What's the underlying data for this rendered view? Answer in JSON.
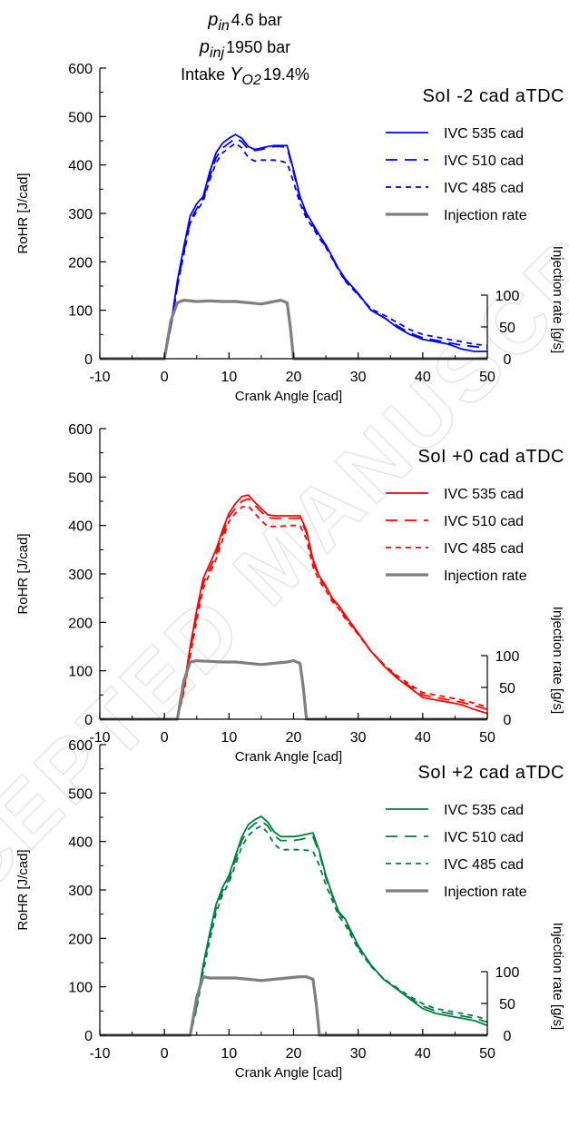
{
  "header": {
    "pin_label": "p",
    "pin_sub": "in",
    "pin_value": "4.6 bar",
    "pinj_label": "p",
    "pinj_sub": "inj",
    "pinj_value": "1950 bar",
    "yo2_prefix": "Intake ",
    "yo2_label": "Y",
    "yo2_sub": "O2",
    "yo2_value": "19.4%"
  },
  "watermark": "ACCEPTED MANUSCRIPT",
  "colors": {
    "injection": "#7f7f7f",
    "axis": "#000000"
  },
  "chart_data": [
    {
      "type": "line",
      "title": "SoI -2 cad aTDC",
      "color": "#0000ff",
      "xlabel": "Crank Angle [cad]",
      "ylabel": "RoHR [J/cad]",
      "y2label": "Injection rate [g/s]",
      "xlim": [
        -10,
        50
      ],
      "ylim": [
        0,
        600
      ],
      "y2lim": [
        0,
        100
      ],
      "xticks": [
        "-10",
        "0",
        "10",
        "20",
        "30",
        "40",
        "50"
      ],
      "yticks": [
        "0",
        "100",
        "200",
        "300",
        "400",
        "500",
        "600"
      ],
      "y2ticks": [
        "0",
        "50",
        "100"
      ],
      "legend": [
        "IVC 535 cad",
        "IVC 510 cad",
        "IVC 485 cad",
        "Injection rate"
      ],
      "series": [
        {
          "name": "IVC 535 cad",
          "axis": "left",
          "style": "solid",
          "x": [
            -10,
            0,
            1,
            2,
            3,
            4,
            5,
            6,
            7,
            8,
            9,
            10,
            11,
            12,
            13,
            14,
            15,
            16,
            17,
            18,
            19,
            20,
            21,
            22,
            23,
            24,
            25,
            26,
            27,
            28,
            30,
            32,
            34,
            36,
            38,
            40,
            42,
            44,
            46,
            48,
            50
          ],
          "y": [
            0,
            0,
            70,
            160,
            230,
            295,
            320,
            335,
            385,
            425,
            445,
            455,
            463,
            455,
            438,
            432,
            435,
            438,
            440,
            440,
            440,
            390,
            335,
            300,
            278,
            255,
            235,
            210,
            185,
            165,
            135,
            100,
            85,
            65,
            50,
            40,
            35,
            30,
            20,
            15,
            15
          ]
        },
        {
          "name": "IVC 510 cad",
          "axis": "left",
          "style": "dash",
          "x": [
            -10,
            0,
            1,
            2,
            3,
            4,
            5,
            6,
            7,
            8,
            9,
            10,
            11,
            12,
            13,
            14,
            15,
            16,
            17,
            18,
            19,
            20,
            21,
            22,
            23,
            24,
            25,
            26,
            27,
            28,
            30,
            32,
            34,
            36,
            38,
            40,
            42,
            44,
            46,
            48,
            50
          ],
          "y": [
            0,
            0,
            65,
            150,
            220,
            285,
            310,
            330,
            375,
            415,
            435,
            445,
            455,
            448,
            432,
            430,
            432,
            435,
            438,
            438,
            436,
            385,
            330,
            295,
            275,
            250,
            232,
            208,
            183,
            162,
            133,
            100,
            85,
            68,
            53,
            43,
            38,
            33,
            28,
            25,
            22
          ]
        },
        {
          "name": "IVC 485 cad",
          "axis": "left",
          "style": "shortdash",
          "x": [
            -10,
            0,
            1,
            2,
            3,
            4,
            5,
            6,
            7,
            8,
            9,
            10,
            11,
            12,
            13,
            14,
            15,
            16,
            17,
            18,
            19,
            20,
            21,
            22,
            23,
            24,
            25,
            26,
            27,
            28,
            30,
            32,
            34,
            36,
            38,
            40,
            42,
            44,
            46,
            48,
            50
          ],
          "y": [
            0,
            0,
            65,
            148,
            215,
            280,
            305,
            325,
            368,
            405,
            425,
            435,
            445,
            435,
            415,
            408,
            410,
            410,
            410,
            408,
            404,
            365,
            320,
            290,
            270,
            248,
            230,
            206,
            182,
            160,
            132,
            103,
            90,
            75,
            60,
            50,
            45,
            40,
            35,
            30,
            27
          ]
        },
        {
          "name": "Injection rate",
          "axis": "right",
          "style": "solid",
          "x": [
            -10,
            0,
            1,
            2,
            3,
            5,
            7,
            9,
            11,
            13,
            15,
            17,
            18,
            19,
            19.5,
            20,
            50
          ],
          "y": [
            0,
            0,
            60,
            88,
            92,
            90,
            91,
            90,
            90,
            88,
            86,
            90,
            92,
            88,
            50,
            0,
            0
          ]
        }
      ]
    },
    {
      "type": "line",
      "title": "SoI +0 cad aTDC",
      "color": "#ff0000",
      "xlabel": "Crank Angle [cad]",
      "ylabel": "RoHR [J/cad]",
      "y2label": "Injection rate [g/s]",
      "xlim": [
        -10,
        50
      ],
      "ylim": [
        0,
        600
      ],
      "y2lim": [
        0,
        100
      ],
      "xticks": [
        "-10",
        "0",
        "10",
        "20",
        "30",
        "40",
        "50"
      ],
      "yticks": [
        "0",
        "100",
        "200",
        "300",
        "400",
        "500",
        "600"
      ],
      "y2ticks": [
        "0",
        "50",
        "100"
      ],
      "legend": [
        "IVC 535 cad",
        "IVC 510 cad",
        "IVC 485 cad",
        "Injection rate"
      ],
      "series": [
        {
          "name": "IVC 535 cad",
          "axis": "left",
          "style": "solid",
          "x": [
            -10,
            2,
            3,
            4,
            5,
            6,
            7,
            8,
            9,
            10,
            11,
            12,
            13,
            14,
            15,
            16,
            17,
            18,
            19,
            20,
            21,
            22,
            23,
            24,
            25,
            26,
            27,
            28,
            30,
            32,
            34,
            36,
            38,
            40,
            42,
            44,
            46,
            48,
            50
          ],
          "y": [
            0,
            0,
            65,
            150,
            225,
            290,
            320,
            350,
            390,
            425,
            445,
            460,
            463,
            448,
            435,
            422,
            420,
            420,
            420,
            420,
            420,
            390,
            330,
            295,
            275,
            250,
            235,
            215,
            178,
            140,
            110,
            85,
            65,
            45,
            40,
            35,
            30,
            20,
            12
          ]
        },
        {
          "name": "IVC 510 cad",
          "axis": "left",
          "style": "dash",
          "x": [
            -10,
            2,
            3,
            4,
            5,
            6,
            7,
            8,
            9,
            10,
            11,
            12,
            13,
            14,
            15,
            16,
            17,
            18,
            19,
            20,
            21,
            22,
            23,
            24,
            25,
            26,
            27,
            28,
            30,
            32,
            34,
            36,
            38,
            40,
            42,
            44,
            46,
            48,
            50
          ],
          "y": [
            0,
            0,
            60,
            140,
            215,
            280,
            310,
            340,
            380,
            418,
            435,
            450,
            455,
            442,
            428,
            416,
            415,
            415,
            415,
            415,
            415,
            385,
            325,
            292,
            272,
            248,
            232,
            212,
            176,
            140,
            112,
            87,
            68,
            50,
            45,
            40,
            35,
            28,
            20
          ]
        },
        {
          "name": "IVC 485 cad",
          "axis": "left",
          "style": "shortdash",
          "x": [
            -10,
            2,
            3,
            4,
            5,
            6,
            7,
            8,
            9,
            10,
            11,
            12,
            13,
            14,
            15,
            16,
            17,
            18,
            19,
            20,
            21,
            22,
            23,
            24,
            25,
            26,
            27,
            28,
            30,
            32,
            34,
            36,
            38,
            40,
            42,
            44,
            46,
            48,
            50
          ],
          "y": [
            0,
            0,
            55,
            130,
            205,
            270,
            300,
            330,
            370,
            408,
            425,
            438,
            440,
            425,
            410,
            398,
            398,
            398,
            400,
            400,
            400,
            372,
            315,
            285,
            266,
            243,
            228,
            208,
            175,
            140,
            113,
            90,
            72,
            55,
            50,
            45,
            40,
            33,
            25
          ]
        },
        {
          "name": "Injection rate",
          "axis": "right",
          "style": "solid",
          "x": [
            -10,
            2,
            3,
            4,
            5,
            7,
            9,
            11,
            13,
            15,
            17,
            19,
            20,
            21,
            21.5,
            22,
            50
          ],
          "y": [
            0,
            0,
            60,
            90,
            92,
            91,
            90,
            90,
            88,
            86,
            88,
            90,
            92,
            88,
            50,
            0,
            0
          ]
        }
      ]
    },
    {
      "type": "line",
      "title": "SoI +2 cad aTDC",
      "color": "#007f3f",
      "xlabel": "Crank Angle [cad]",
      "ylabel": "RoHR [J/cad]",
      "y2label": "Injection rate [g/s]",
      "xlim": [
        -10,
        50
      ],
      "ylim": [
        0,
        600
      ],
      "y2lim": [
        0,
        100
      ],
      "xticks": [
        "-10",
        "0",
        "10",
        "20",
        "30",
        "40",
        "50"
      ],
      "yticks": [
        "0",
        "100",
        "200",
        "300",
        "400",
        "500",
        "600"
      ],
      "y2ticks": [
        "0",
        "50",
        "100"
      ],
      "legend": [
        "IVC 535 cad",
        "IVC 510 cad",
        "IVC 485 cad",
        "Injection rate"
      ],
      "series": [
        {
          "name": "IVC 535 cad",
          "axis": "left",
          "style": "solid",
          "x": [
            -10,
            4,
            5,
            6,
            7,
            8,
            9,
            10,
            11,
            12,
            13,
            14,
            15,
            16,
            17,
            18,
            19,
            20,
            21,
            22,
            23,
            24,
            25,
            26,
            27,
            28,
            30,
            32,
            34,
            36,
            38,
            40,
            42,
            44,
            46,
            48,
            50
          ],
          "y": [
            0,
            0,
            65,
            145,
            210,
            270,
            305,
            330,
            370,
            410,
            435,
            445,
            452,
            440,
            420,
            410,
            410,
            410,
            412,
            415,
            418,
            380,
            330,
            290,
            255,
            240,
            185,
            145,
            115,
            95,
            75,
            55,
            45,
            40,
            35,
            30,
            20
          ]
        },
        {
          "name": "IVC 510 cad",
          "axis": "left",
          "style": "dash",
          "x": [
            -10,
            4,
            5,
            6,
            7,
            8,
            9,
            10,
            11,
            12,
            13,
            14,
            15,
            16,
            17,
            18,
            19,
            20,
            21,
            22,
            23,
            24,
            25,
            26,
            27,
            28,
            30,
            32,
            34,
            36,
            38,
            40,
            42,
            44,
            46,
            48,
            50
          ],
          "y": [
            0,
            0,
            60,
            140,
            205,
            262,
            298,
            322,
            362,
            402,
            425,
            437,
            442,
            432,
            412,
            402,
            402,
            402,
            404,
            407,
            410,
            375,
            325,
            287,
            252,
            235,
            182,
            143,
            115,
            96,
            77,
            60,
            50,
            45,
            40,
            35,
            27
          ]
        },
        {
          "name": "IVC 485 cad",
          "axis": "left",
          "style": "shortdash",
          "x": [
            -10,
            4,
            5,
            6,
            7,
            8,
            9,
            10,
            11,
            12,
            13,
            14,
            15,
            16,
            17,
            18,
            19,
            20,
            21,
            22,
            23,
            24,
            25,
            26,
            27,
            28,
            30,
            32,
            34,
            36,
            38,
            40,
            42,
            44,
            46,
            48,
            50
          ],
          "y": [
            0,
            0,
            55,
            130,
            195,
            252,
            290,
            315,
            352,
            390,
            412,
            425,
            432,
            418,
            395,
            383,
            383,
            383,
            383,
            382,
            380,
            350,
            310,
            278,
            246,
            228,
            178,
            142,
            116,
            98,
            80,
            65,
            55,
            50,
            45,
            40,
            32
          ]
        },
        {
          "name": "Injection rate",
          "axis": "right",
          "style": "solid",
          "x": [
            -10,
            4,
            5,
            6,
            7,
            9,
            11,
            13,
            15,
            17,
            19,
            21,
            22,
            23,
            23.5,
            24,
            50
          ],
          "y": [
            0,
            0,
            60,
            92,
            90,
            90,
            90,
            88,
            86,
            88,
            90,
            92,
            92,
            88,
            50,
            0,
            0
          ]
        }
      ]
    }
  ]
}
